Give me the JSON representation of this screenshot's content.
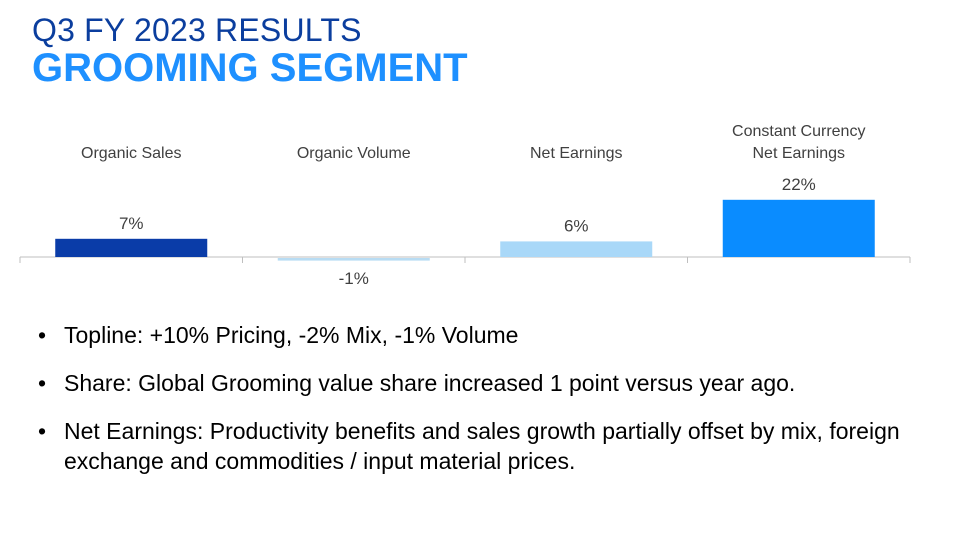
{
  "header": {
    "title": "Q3 FY 2023 RESULTS",
    "subtitle": "GROOMING SEGMENT"
  },
  "chart_data": {
    "type": "bar",
    "categories": [
      "Organic Sales",
      "Organic Volume",
      "Net Earnings",
      [
        "Constant Currency",
        "Net Earnings"
      ]
    ],
    "values": [
      7,
      -1,
      6,
      22
    ],
    "value_labels": [
      "7%",
      "-1%",
      "6%",
      "22%"
    ],
    "colors": [
      "#0a3ca8",
      "#b8dcf3",
      "#a9d8f8",
      "#0a8cff"
    ],
    "grid": false,
    "legend": "none"
  },
  "bullets": [
    "Topline: +10% Pricing, -2% Mix, -1% Volume",
    "Share: Global Grooming value share increased 1 point versus year ago.",
    "Net Earnings: Productivity benefits and sales growth partially offset by mix, foreign exchange and commodities / input material prices."
  ],
  "bullet_glyph": "•"
}
